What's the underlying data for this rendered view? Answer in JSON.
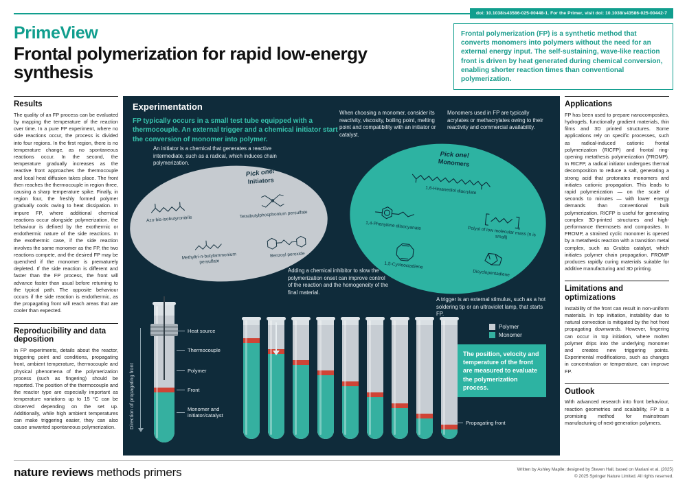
{
  "colors": {
    "teal": "#119e8e",
    "teal_bright": "#2fbba8",
    "panel_bg": "#0f2b3a",
    "polymer_gray": "#c7cdd3",
    "monomer_teal": "#35b0a0",
    "front_red": "#cf4436"
  },
  "topbar": {
    "doi_text": "doi: 10.1038/s43586-025-00448-1. For the Primer, visit doi: 10.1038/s43586-025-00442-7"
  },
  "header": {
    "brand": "PrimeView",
    "title": "Frontal polymerization for rapid low-energy synthesis",
    "intro": "Frontal polymerization (FP) is a synthetic method that converts monomers into polymers without the need for an external energy input. The self-sustaining, wave-like reaction front is driven by heat generated during chemical conversion, enabling shorter reaction times than conventional polymerization."
  },
  "left_column": {
    "results": {
      "heading": "Results",
      "body": "The quality of an FP process can be evaluated by mapping the temperature of the reaction over time. In a pure FP experiment, where no side reactions occur, the process is divided into four regions. In the first region, there is no temperature change, as no spontaneous reactions occur. In the second, the temperature gradually increases as the reactive front approaches the thermocouple and local heat diffusion takes place. The front then reaches the thermocouple in region three, causing a sharp temperature spike. Finally, in region four, the freshly formed polymer gradually cools owing to heat dissipation. In impure FP, where additional chemical reactions occur alongside polymerization, the behaviour is defined by the exothermic or endothermic nature of the side reactions. In the exothermic case, if the side reaction involves the same monomer as the FP, the two reactions compete, and the desired FP may be quenched if the monomer is prematurely depleted. If the side reaction is different and faster than the FP process, the front will advance faster than usual before returning to the typical path. The opposite behaviour occurs if the side reaction is endothermic, as the propagating front will reach areas that are cooler than expected."
    },
    "reproducibility": {
      "heading": "Reproducibility and data deposition",
      "body": "In FP experiments, details about the reactor, triggering point and conditions, propagating front, ambient temperature, thermocouple and physical phenomena of the polymerization process (such as fingering) should be reported. The position of the thermocouple and the reactor type are especially important as temperature variations up to 15 °C can be observed depending on the set up. Additionally, while high ambient temperatures can make triggering easier, they can also cause unwanted spontaneous polymerization."
    }
  },
  "panel": {
    "heading": "Experimentation",
    "lede": "FP typically occurs in a small test tube equipped with a thermocouple. An external trigger and a chemical initiator start the conversion of monomer into polymer.",
    "note_initiator": "An initiator is a chemical that generates a reactive intermediate, such as a radical, which induces chain polymerization.",
    "note_monomer_choice": "When choosing a monomer, consider its reactivity, viscosity, boiling point, melting point and compatibility with an initiator or catalyst.",
    "note_monomer_types": "Monomers used in FP are typically acrylates or methacrylates owing to their reactivity and commercial availability.",
    "note_inhibitor": "Adding a chemical inhibitor to slow the polymerization onset can improve control of the reaction and the homogeneity of the final material.",
    "note_trigger": "A trigger is an external stimulus, such as a hot soldering tip or an ultraviolet lamp, that starts FP.",
    "initiators": {
      "pick": "Pick one!",
      "group_label": "Initiators",
      "items": [
        "Azo-bis-isobutyronitrile",
        "Tetrabutylphosphonium persulfate",
        "Methyltri-n-butylammonium persulfate",
        "Benzoyl peroxide"
      ]
    },
    "monomers": {
      "pick": "Pick one!",
      "group_label": "Monomers",
      "items": [
        "1,6-Hexanediol diacrylate",
        "1,4-Phenylene diisocyanate",
        "Polyol of low molecular mass (n is small)",
        "1,5-Cyclooctadiene",
        "Dicyclopentadiene"
      ]
    },
    "legend": {
      "polymer": "Polymer",
      "monomer": "Monomer"
    },
    "measure_box": "The position, velocity and temperature of the front are measured to evaluate the polymerization process.",
    "big_tube_labels": {
      "heat_source": "Heat source",
      "thermocouple": "Thermocouple",
      "polymer": "Polymer",
      "front": "Front",
      "monomer": "Monomer and initiator/catalyst"
    },
    "axis_label": "Direction of propagating front",
    "propagating_front": "Propagating front",
    "tubes": [
      {
        "front": 0.16
      },
      {
        "front": 0.25
      },
      {
        "front": 0.34
      },
      {
        "front": 0.43
      },
      {
        "front": 0.52
      },
      {
        "front": 0.61
      },
      {
        "front": 0.7
      },
      {
        "front": 0.79
      },
      {
        "front": 0.88
      }
    ]
  },
  "right_column": {
    "applications": {
      "heading": "Applications",
      "body": "FP has been used to prepare nanocomposites, hydrogels, functionally gradient materials, thin films and 3D printed structures. Some applications rely on specific processes, such as radical-induced cationic frontal polymerization (RICFP) and frontal ring-opening metathesis polymerization (FROMP). In RICFP, a radical initiator undergoes thermal decomposition to reduce a salt, generating a strong acid that protonates monomers and initiates cationic propagation. This leads to rapid polymerization — on the scale of seconds to minutes — with lower energy demands than conventional bulk polymerization. RICFP is useful for generating complex 3D-printed structures and high-performance thermosets and composites. In FROMP, a strained cyclic monomer is opened by a metathesis reaction with a transition metal complex, such as Grubbs catalyst, which initiates polymer chain propagation. FROMP produces rapidly curing materials suitable for additive manufacturing and 3D printing."
    },
    "limitations": {
      "heading": "Limitations and optimizations",
      "body": "Instability of the front can result in non-uniform materials. In top initiation, instability due to natural convection is mitigated by the hot front propagating downwards. However, fingering can occur in top initiation, where molten polymer drips into the underlying monomer and creates new triggering points. Experimental modifications, such as changes in concentration or temperature, can improve FP."
    },
    "outlook": {
      "heading": "Outlook",
      "body": "With advanced research into front behaviour, reaction geometries and scalability, FP is a promising method for mainstream manufacturing of next-generation polymers."
    }
  },
  "footer": {
    "journal_bold": "nature reviews",
    "journal_regular": " methods primers",
    "credit_line1": "Written by Ashley Mapile; designed by Steven Hall, based on Mariani et al. (2025)",
    "credit_line2": "© 2025 Springer Nature Limited. All rights reserved."
  }
}
